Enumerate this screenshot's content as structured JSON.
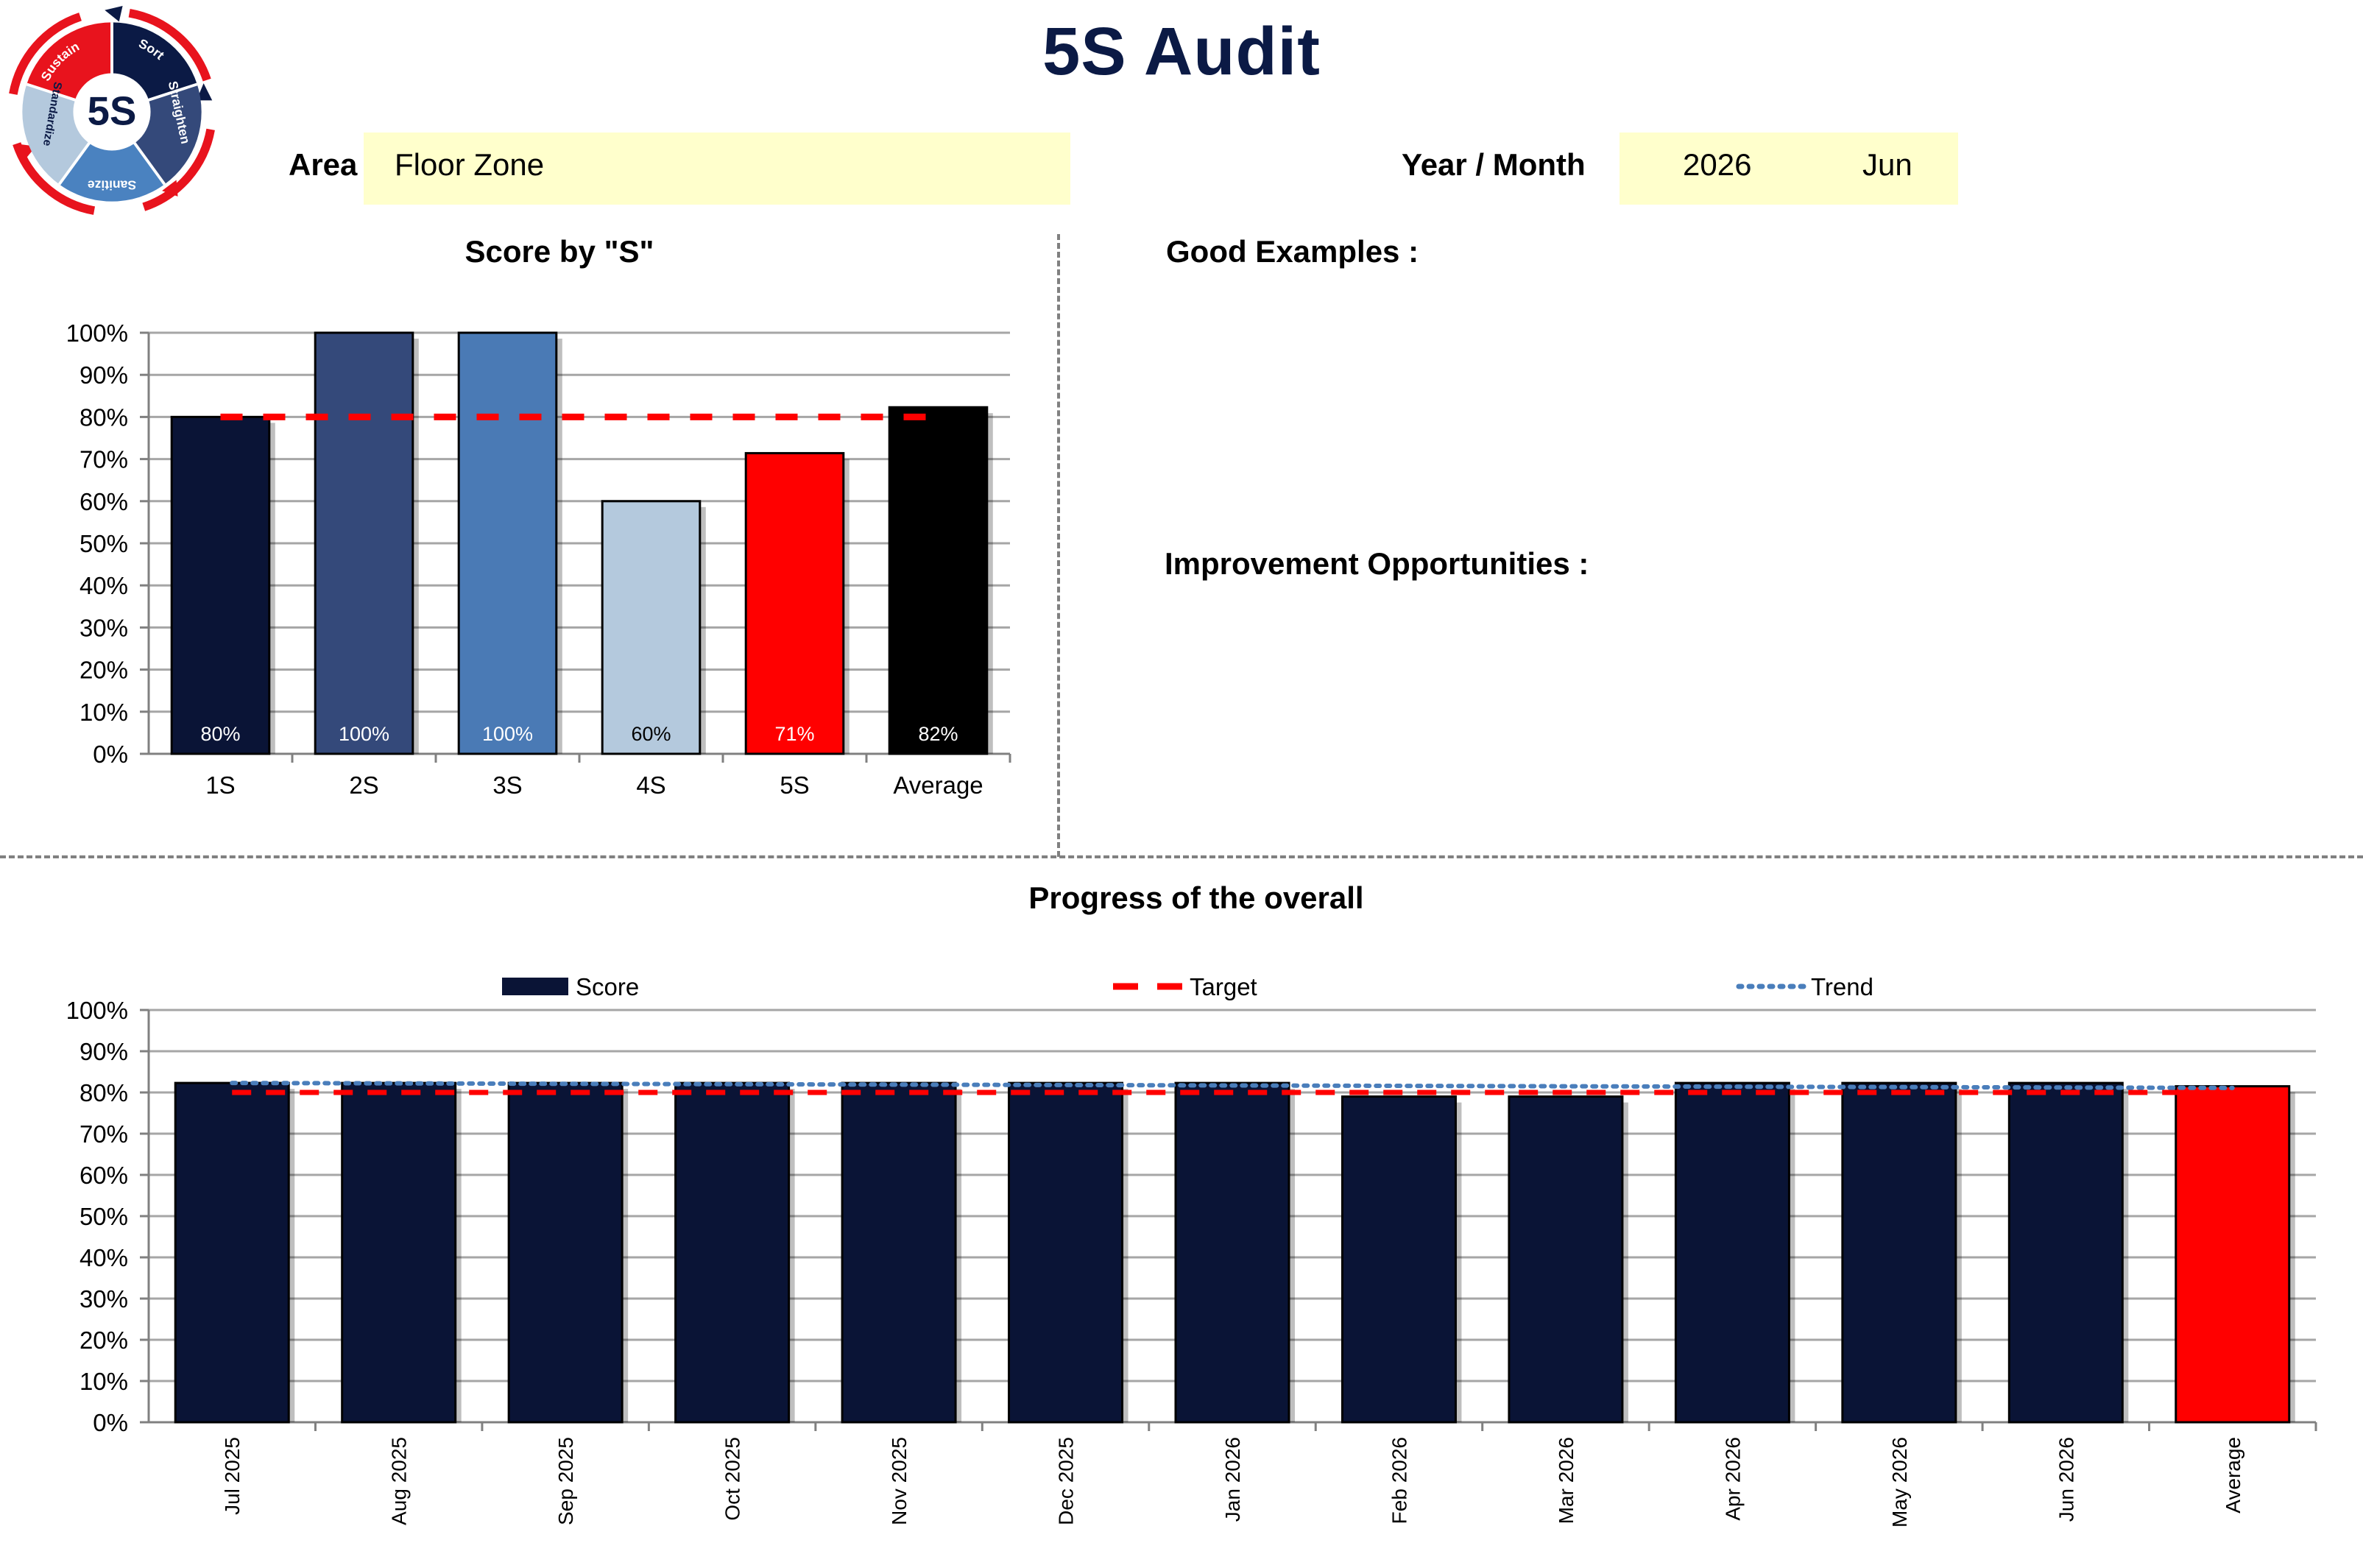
{
  "page_title": "5S Audit",
  "logo": {
    "center_text": "5S",
    "segments": [
      "Sort",
      "Straighten",
      "Sanitize",
      "Standardize",
      "Sustain"
    ],
    "colors": {
      "red": "#e8131d",
      "navy": "#0b1a45",
      "mid": "#34497a",
      "blue": "#4a82c0",
      "light": "#b4c9dd"
    }
  },
  "header": {
    "area_label": "Area",
    "area_value": "Floor Zone",
    "year_month_label": "Year / Month",
    "year": "2026",
    "month": "Jun"
  },
  "sections": {
    "good_examples": "Good Examples :",
    "improvement_opportunities": "Improvement Opportunities :"
  },
  "colors": {
    "target_line": "#ff0000",
    "trend_line": "#4a7ebb",
    "grid": "#a6a6a6",
    "axis": "#808080"
  },
  "chart_data": [
    {
      "type": "bar",
      "title": "Score by \"S\"",
      "categories": [
        "1S",
        "2S",
        "3S",
        "4S",
        "5S",
        "Average"
      ],
      "values": [
        0.8,
        1.0,
        1.0,
        0.6,
        0.714,
        0.823
      ],
      "data_labels": [
        "80%",
        "100%",
        "100%",
        "60%",
        "71%",
        "82%"
      ],
      "bar_colors": [
        "#0a1436",
        "#34497a",
        "#4a7ab5",
        "#b4c9dd",
        "#ff0000",
        "#000000"
      ],
      "label_colors": [
        "#ffffff",
        "#ffffff",
        "#ffffff",
        "#000000",
        "#ffffff",
        "#ffffff"
      ],
      "target": 0.8,
      "ylim": [
        0,
        1
      ],
      "yticks": [
        "0%",
        "10%",
        "20%",
        "30%",
        "40%",
        "50%",
        "60%",
        "70%",
        "80%",
        "90%",
        "100%"
      ],
      "grid": true,
      "xlabel": "",
      "ylabel": ""
    },
    {
      "type": "bar",
      "title": "Progress of the overall",
      "categories": [
        "Jul 2025",
        "Aug 2025",
        "Sep 2025",
        "Oct 2025",
        "Nov 2025",
        "Dec 2025",
        "Jan 2026",
        "Feb 2026",
        "Mar 2026",
        "Apr 2026",
        "May 2026",
        "Jun 2026",
        "Average"
      ],
      "series": [
        {
          "name": "Score",
          "type": "bar",
          "values": [
            0.823,
            0.823,
            0.823,
            0.823,
            0.823,
            0.823,
            0.823,
            0.79,
            0.79,
            0.823,
            0.823,
            0.823,
            0.815
          ]
        },
        {
          "name": "Target",
          "type": "line",
          "style": "dashed",
          "values": [
            0.8,
            0.8,
            0.8,
            0.8,
            0.8,
            0.8,
            0.8,
            0.8,
            0.8,
            0.8,
            0.8,
            0.8,
            0.8
          ]
        },
        {
          "name": "Trend",
          "type": "line",
          "style": "dotted",
          "values": [
            0.823,
            0.822,
            0.821,
            0.82,
            0.819,
            0.818,
            0.817,
            0.816,
            0.815,
            0.814,
            0.813,
            0.812,
            0.811
          ]
        }
      ],
      "bar_colors": {
        "default": "#0a1436",
        "average": "#ff0000"
      },
      "legend": [
        "Score",
        "Target",
        "Trend"
      ],
      "legend_position": "top",
      "ylim": [
        0,
        1
      ],
      "yticks": [
        "0%",
        "10%",
        "20%",
        "30%",
        "40%",
        "50%",
        "60%",
        "70%",
        "80%",
        "90%",
        "100%"
      ],
      "grid": true,
      "xlabel": "",
      "ylabel": ""
    }
  ]
}
